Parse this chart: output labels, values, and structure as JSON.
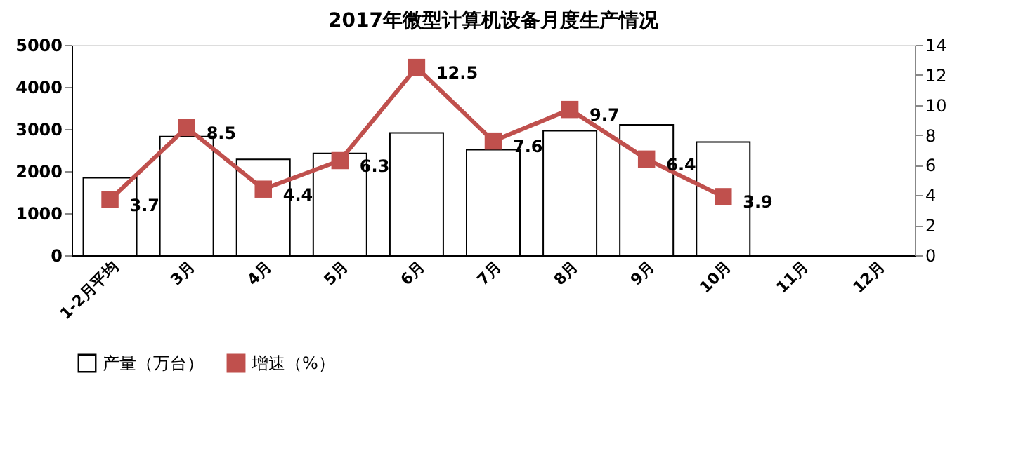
{
  "chart_data": {
    "type": "bar",
    "title": "2017年微型计算机设备月度生产情况",
    "categories": [
      "1-2月平均",
      "3月",
      "4月",
      "5月",
      "6月",
      "7月",
      "8月",
      "9月",
      "10月",
      "11月",
      "12月"
    ],
    "series": [
      {
        "name": "产量（万台）",
        "color": "#ffffff",
        "values": [
          1840,
          2820,
          2280,
          2420,
          2910,
          2510,
          2960,
          3100,
          2690,
          null,
          null
        ]
      },
      {
        "name": "增速（%）",
        "type": "line",
        "color": "#c0504d",
        "axis": "y2",
        "marker": "square",
        "values": [
          3.7,
          8.5,
          4.4,
          6.3,
          12.5,
          7.6,
          9.7,
          6.4,
          3.9,
          null,
          null
        ],
        "value_labels": [
          "3.7",
          "8.5",
          "4.4",
          "6.3",
          "12.5",
          "7.6",
          "9.7",
          "6.4",
          "3.9",
          null,
          null
        ]
      }
    ],
    "ylim": [
      0,
      5000
    ],
    "yticks": [
      0,
      1000,
      2000,
      3000,
      4000,
      5000
    ],
    "line_style": "solid",
    "y2lim": [
      0,
      14
    ],
    "y2ticks": [
      0,
      2,
      4,
      6,
      8,
      10,
      12,
      14
    ],
    "grid": false,
    "legend": "bottom"
  }
}
